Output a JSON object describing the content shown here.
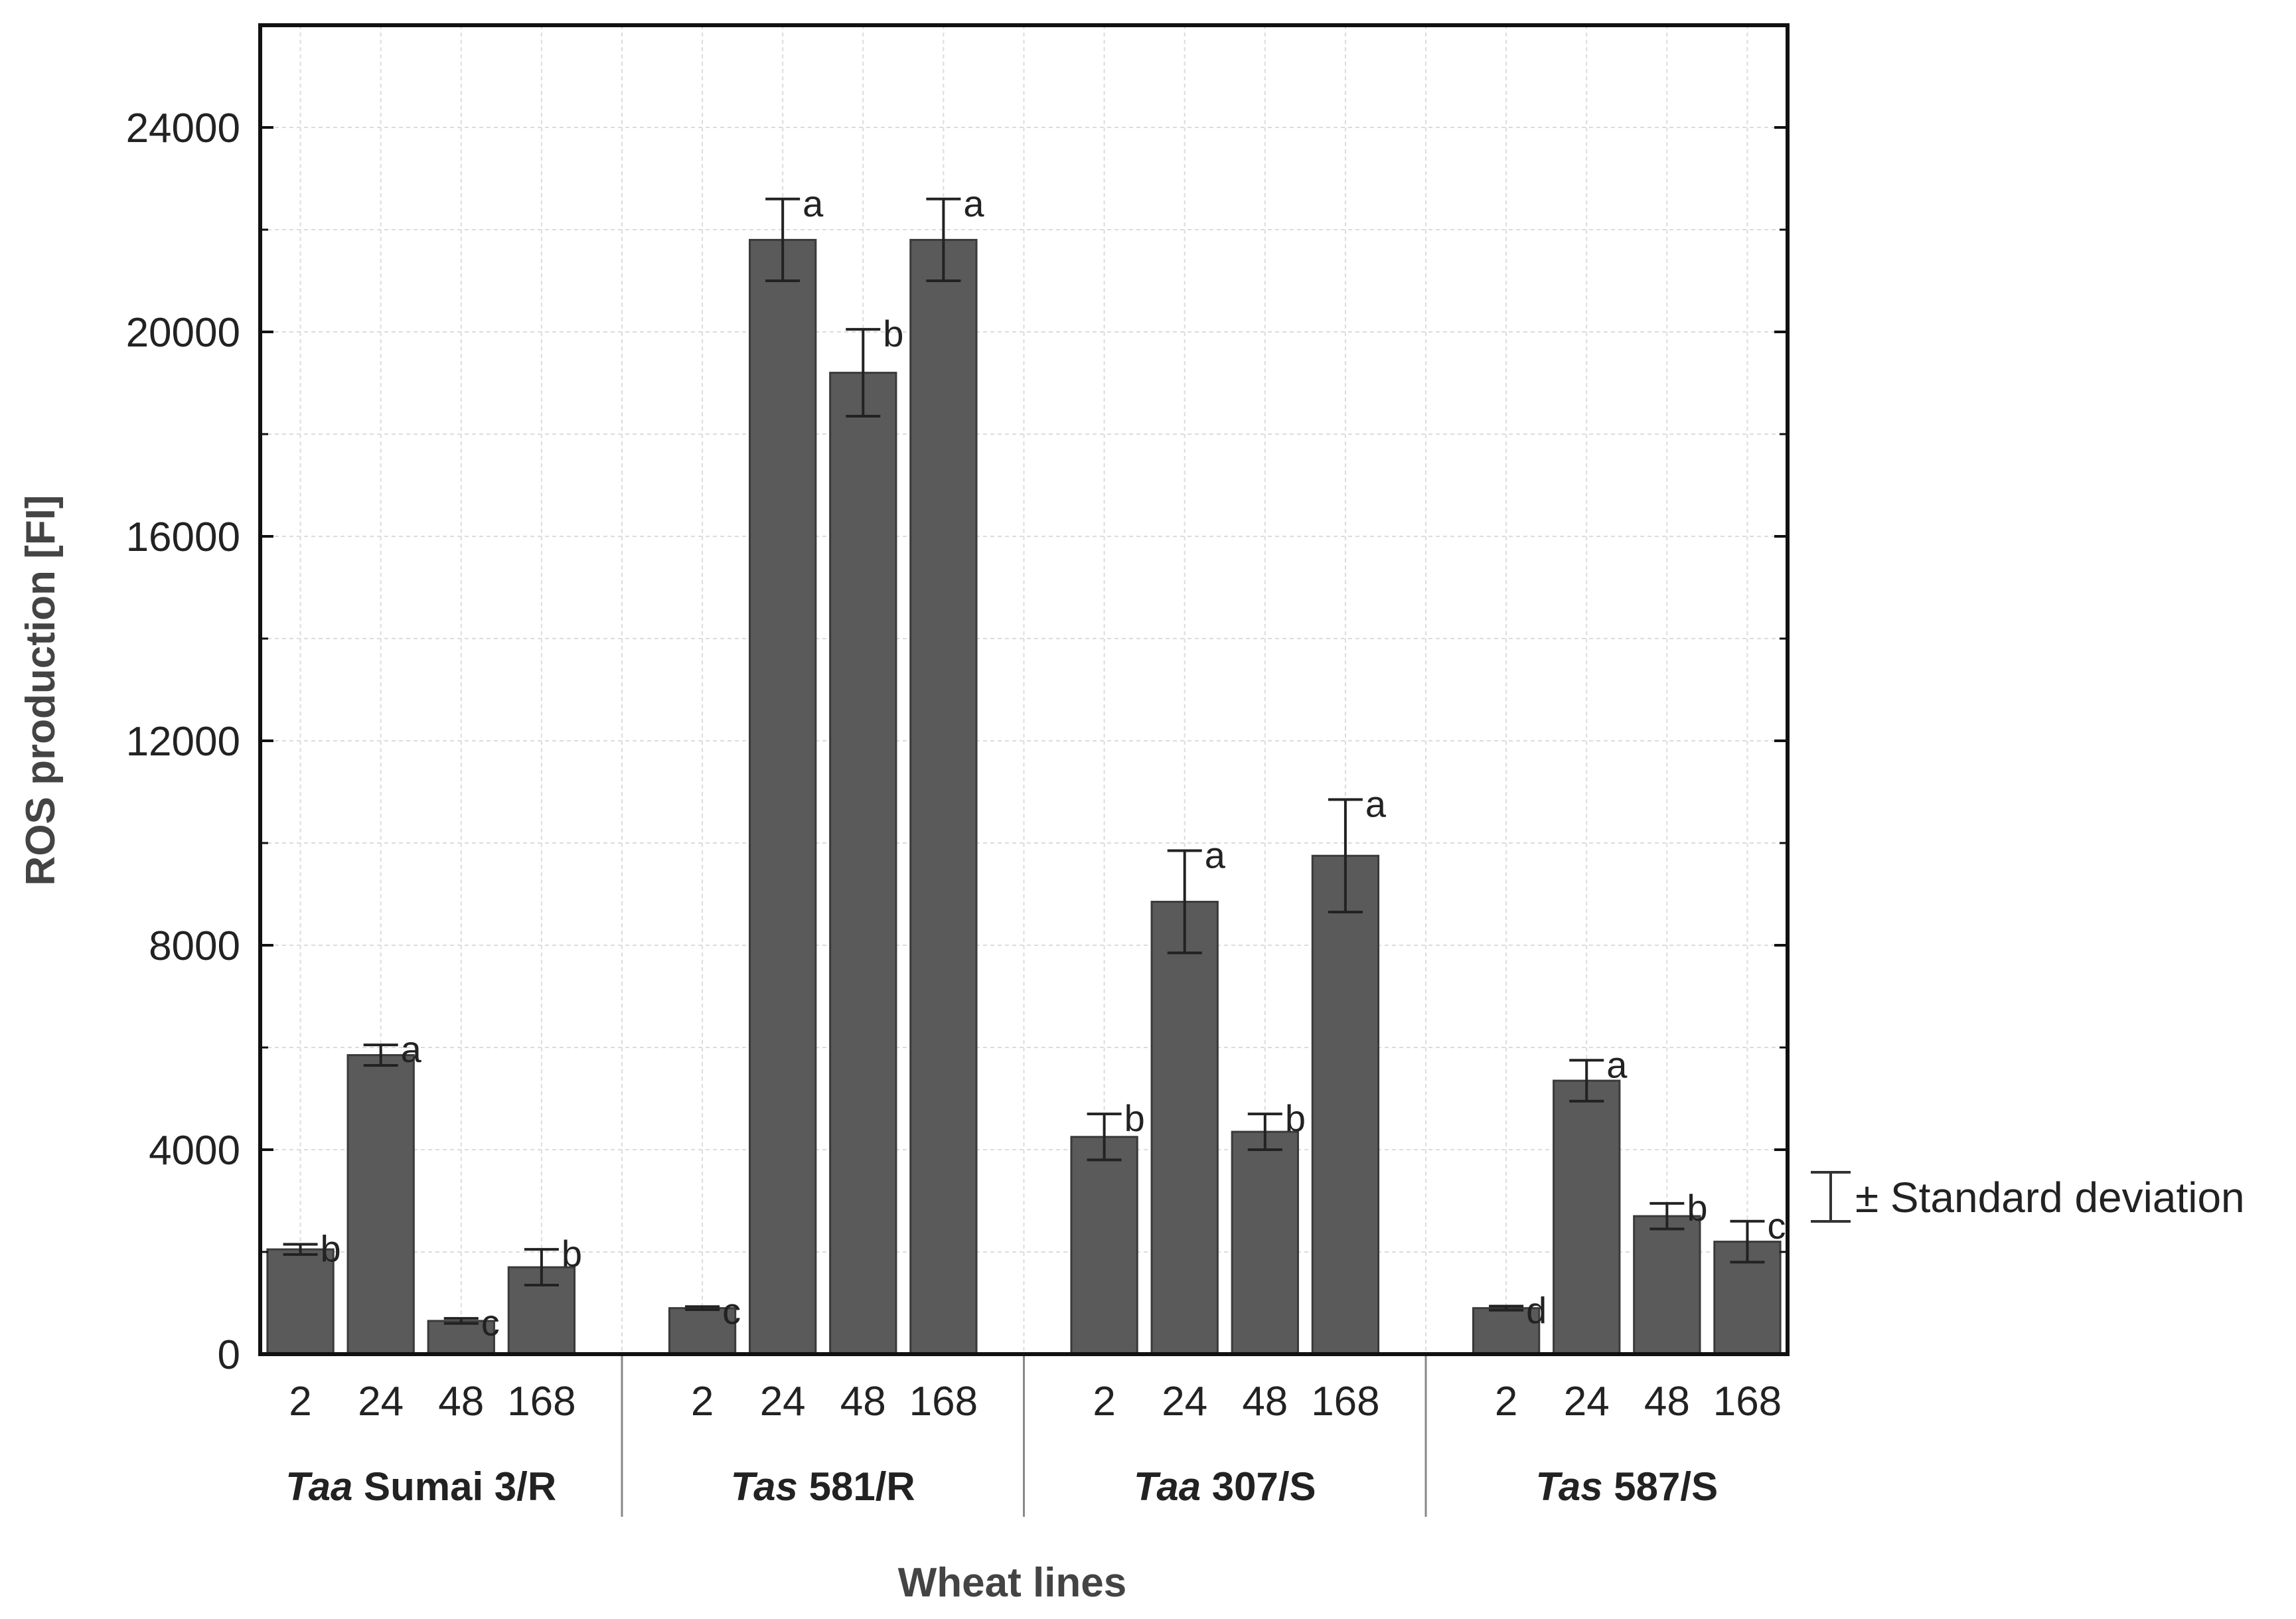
{
  "chart_data": {
    "type": "bar",
    "xlabel": "Wheat lines",
    "ylabel": "ROS production [FI]",
    "ylim": [
      0,
      26000
    ],
    "yticks": [
      0,
      4000,
      8000,
      12000,
      16000,
      20000,
      24000
    ],
    "ytick_labels": [
      "0",
      "4000",
      "8000",
      "12000",
      "16000",
      "20000",
      "24000"
    ],
    "grid": true,
    "legend": {
      "label": "± Standard deviation",
      "position": "right"
    },
    "bar_color": "#5a5a5a",
    "groups": [
      {
        "italic": "Taa",
        "rest": " Sumai 3/R",
        "bars": [
          {
            "x": "2",
            "value": 2050,
            "sd": 100,
            "letter": "b"
          },
          {
            "x": "24",
            "value": 5850,
            "sd": 200,
            "letter": "a"
          },
          {
            "x": "48",
            "value": 650,
            "sd": 50,
            "letter": "c"
          },
          {
            "x": "168",
            "value": 1700,
            "sd": 350,
            "letter": "b"
          }
        ]
      },
      {
        "italic": "Tas",
        "rest": " 581/R",
        "bars": [
          {
            "x": "2",
            "value": 900,
            "sd": 30,
            "letter": "c"
          },
          {
            "x": "24",
            "value": 21800,
            "sd": 800,
            "letter": "a"
          },
          {
            "x": "48",
            "value": 19200,
            "sd": 850,
            "letter": "b"
          },
          {
            "x": "168",
            "value": 21800,
            "sd": 800,
            "letter": "a"
          }
        ]
      },
      {
        "italic": "Taa",
        "rest": " 307/S",
        "bars": [
          {
            "x": "2",
            "value": 4250,
            "sd": 450,
            "letter": "b"
          },
          {
            "x": "24",
            "value": 8850,
            "sd": 1000,
            "letter": "a"
          },
          {
            "x": "48",
            "value": 4350,
            "sd": 350,
            "letter": "b"
          },
          {
            "x": "168",
            "value": 9750,
            "sd": 1100,
            "letter": "a"
          }
        ]
      },
      {
        "italic": "Tas",
        "rest": " 587/S",
        "bars": [
          {
            "x": "2",
            "value": 900,
            "sd": 40,
            "letter": "d"
          },
          {
            "x": "24",
            "value": 5350,
            "sd": 400,
            "letter": "a"
          },
          {
            "x": "48",
            "value": 2700,
            "sd": 250,
            "letter": "b"
          },
          {
            "x": "168",
            "value": 2200,
            "sd": 400,
            "letter": "c"
          }
        ]
      }
    ]
  }
}
